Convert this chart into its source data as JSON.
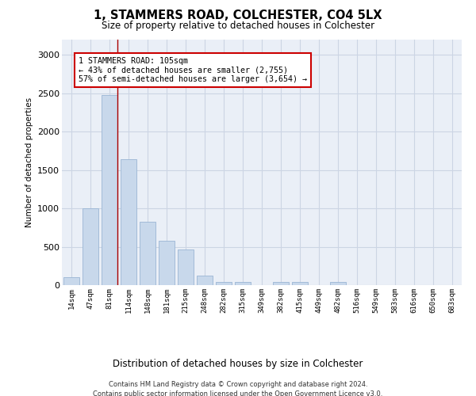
{
  "title": "1, STAMMERS ROAD, COLCHESTER, CO4 5LX",
  "subtitle": "Size of property relative to detached houses in Colchester",
  "xlabel": "Distribution of detached houses by size in Colchester",
  "ylabel": "Number of detached properties",
  "bar_color": "#c8d8eb",
  "bar_edge_color": "#9ab5d4",
  "grid_color": "#ccd5e4",
  "background_color": "#eaeff7",
  "categories": [
    "14sqm",
    "47sqm",
    "81sqm",
    "114sqm",
    "148sqm",
    "181sqm",
    "215sqm",
    "248sqm",
    "282sqm",
    "315sqm",
    "349sqm",
    "382sqm",
    "415sqm",
    "449sqm",
    "482sqm",
    "516sqm",
    "549sqm",
    "583sqm",
    "616sqm",
    "650sqm",
    "683sqm"
  ],
  "values": [
    100,
    1000,
    2480,
    1640,
    830,
    580,
    460,
    120,
    40,
    40,
    0,
    40,
    40,
    0,
    40,
    0,
    0,
    0,
    0,
    0,
    0
  ],
  "ylim": [
    0,
    3200
  ],
  "yticks": [
    0,
    500,
    1000,
    1500,
    2000,
    2500,
    3000
  ],
  "property_line_x": 2.42,
  "annotation_text": "1 STAMMERS ROAD: 105sqm\n← 43% of detached houses are smaller (2,755)\n57% of semi-detached houses are larger (3,654) →",
  "footer_line1": "Contains HM Land Registry data © Crown copyright and database right 2024.",
  "footer_line2": "Contains public sector information licensed under the Open Government Licence v3.0."
}
